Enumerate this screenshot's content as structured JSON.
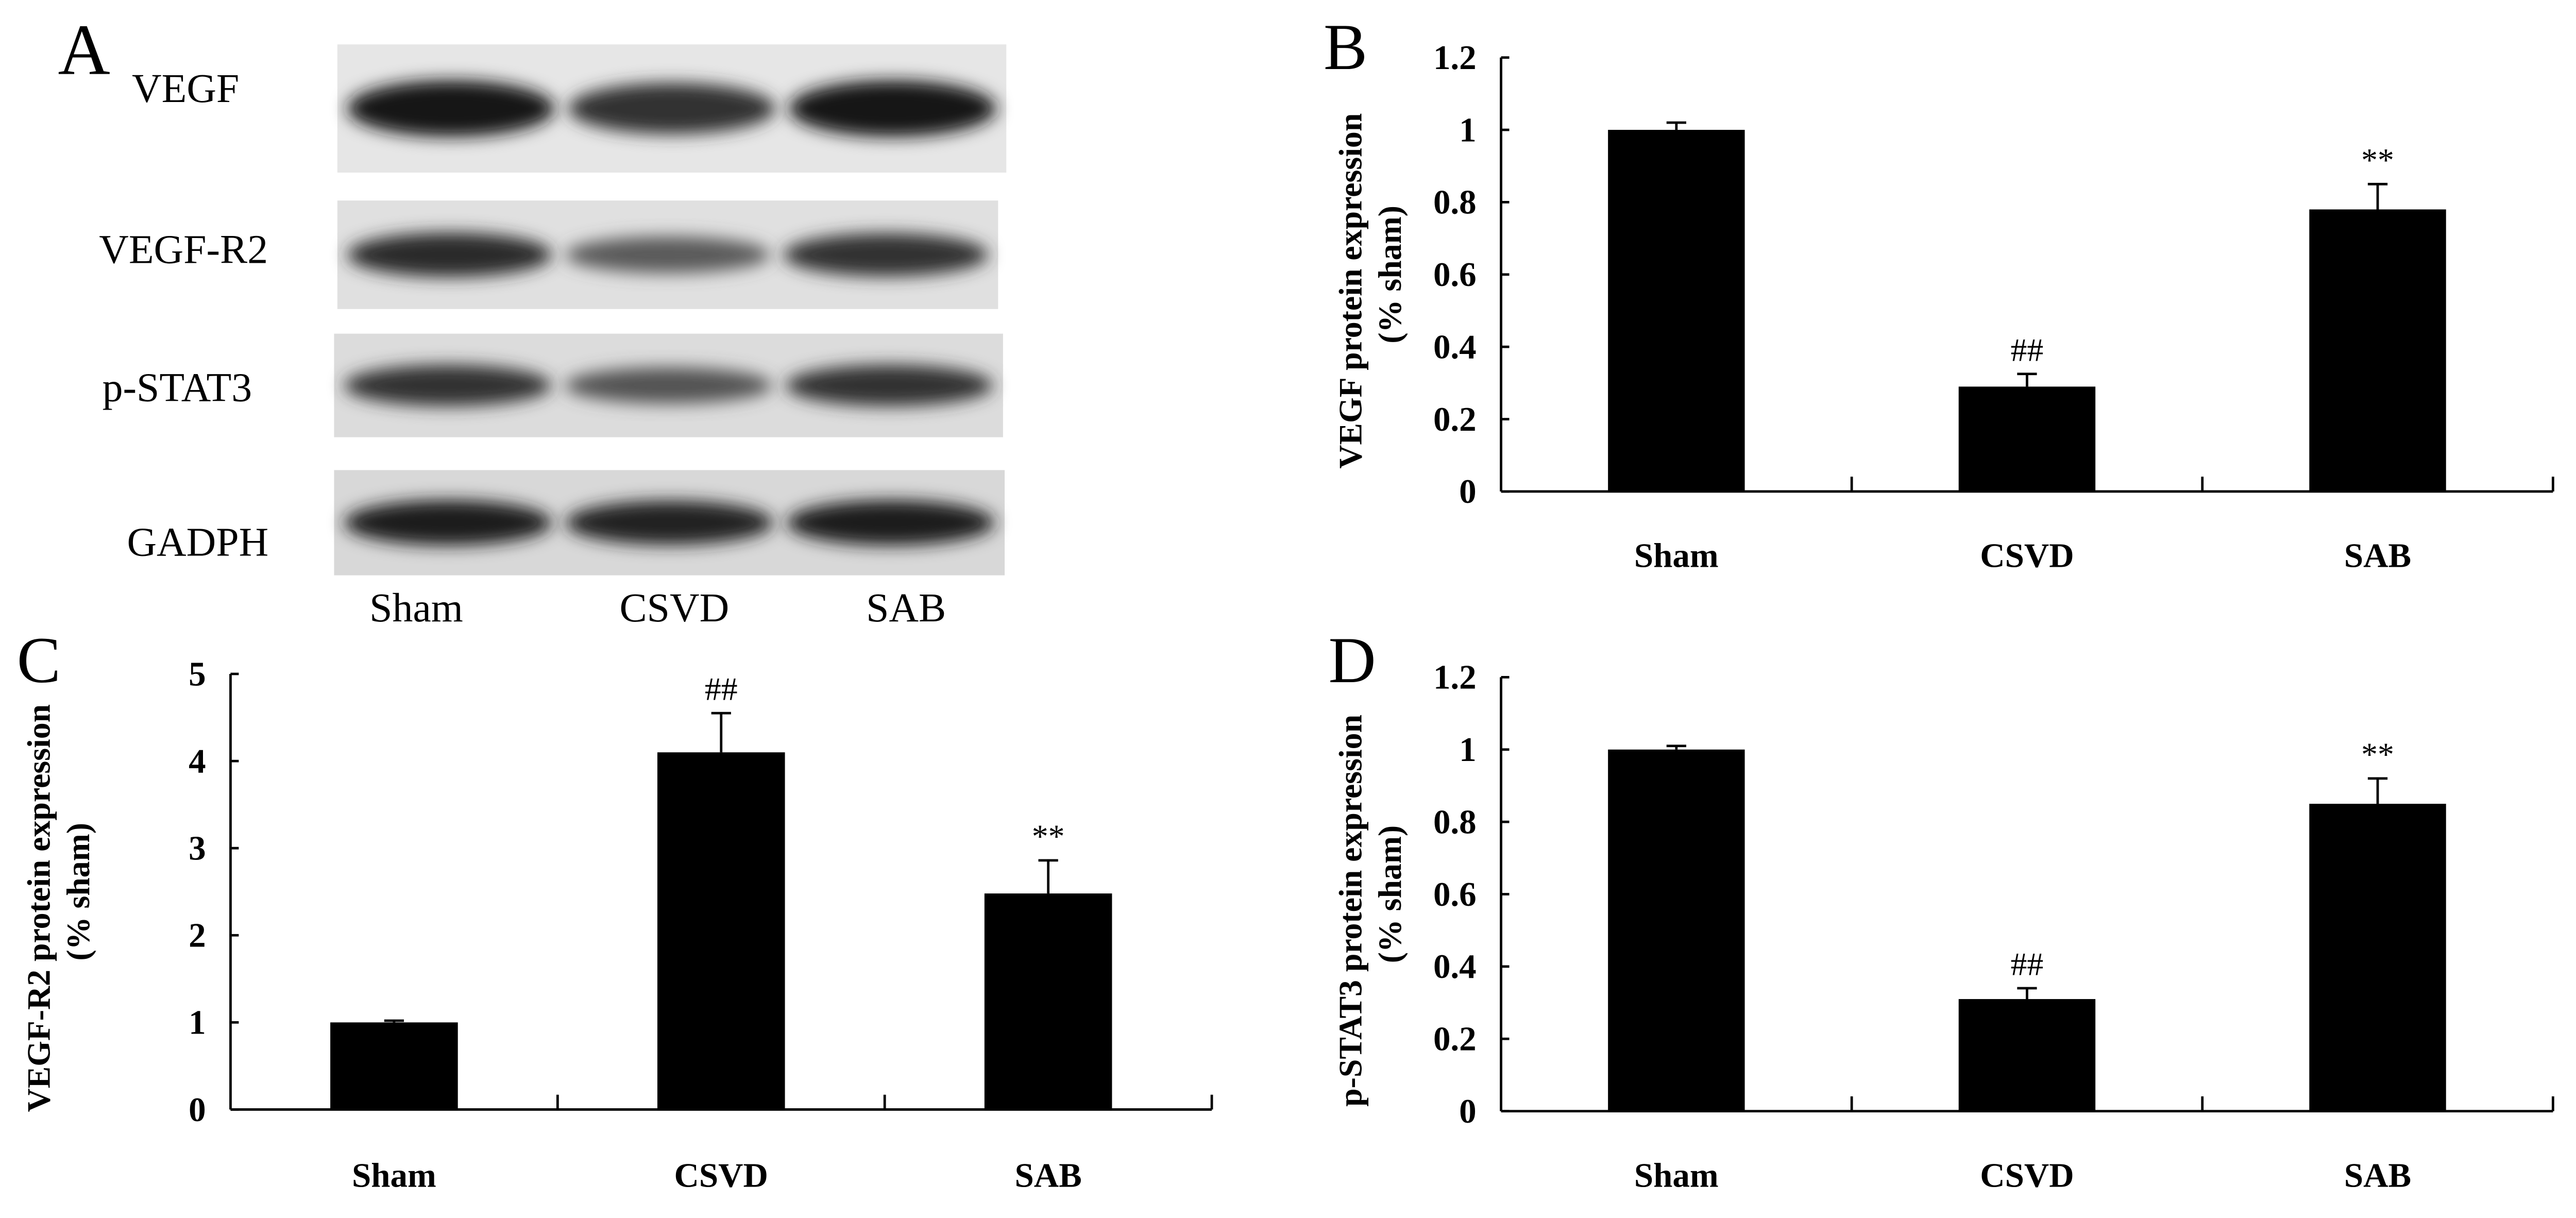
{
  "panel_a": {
    "label": "A",
    "proteins": [
      "VEGF",
      "VEGF-R2",
      "p-STAT3",
      "GADPH"
    ],
    "lanes": [
      "Sham",
      "CSVD",
      "SAB"
    ],
    "band_intensity": [
      [
        1.0,
        0.8,
        1.0
      ],
      [
        0.85,
        0.5,
        0.8
      ],
      [
        0.8,
        0.55,
        0.8
      ],
      [
        0.95,
        0.9,
        0.95
      ]
    ]
  },
  "chart_data": [
    {
      "panel": "B",
      "type": "bar",
      "categories": [
        "Sham",
        "CSVD",
        "SAB"
      ],
      "values": [
        1.0,
        0.29,
        0.78
      ],
      "errors": [
        0.02,
        0.035,
        0.07
      ],
      "annotations": [
        "",
        "##",
        "**"
      ],
      "ylabel": "VEGF protein expression",
      "ylabel2": "(% sham)",
      "ylim": [
        0,
        1.2
      ],
      "yticks": [
        "0",
        "0.2",
        "0.4",
        "0.6",
        "0.8",
        "1",
        "1.2"
      ],
      "grid": false
    },
    {
      "panel": "C",
      "type": "bar",
      "categories": [
        "Sham",
        "CSVD",
        "SAB"
      ],
      "values": [
        1.0,
        4.1,
        2.48
      ],
      "errors": [
        0.02,
        0.45,
        0.38
      ],
      "annotations": [
        "",
        "##",
        "**"
      ],
      "ylabel": "VEGF-R2 protein expression",
      "ylabel2": "(% sham)",
      "ylim": [
        0,
        5
      ],
      "yticks": [
        "0",
        "1",
        "2",
        "3",
        "4",
        "5"
      ],
      "grid": false
    },
    {
      "panel": "D",
      "type": "bar",
      "categories": [
        "Sham",
        "CSVD",
        "SAB"
      ],
      "values": [
        1.0,
        0.31,
        0.85
      ],
      "errors": [
        0.01,
        0.03,
        0.07
      ],
      "annotations": [
        "",
        "##",
        "**"
      ],
      "ylabel": "p-STAT3 protein expression",
      "ylabel2": "(% sham)",
      "ylim": [
        0,
        1.2
      ],
      "yticks": [
        "0",
        "0.2",
        "0.4",
        "0.6",
        "0.8",
        "1",
        "1.2"
      ],
      "grid": false
    }
  ]
}
